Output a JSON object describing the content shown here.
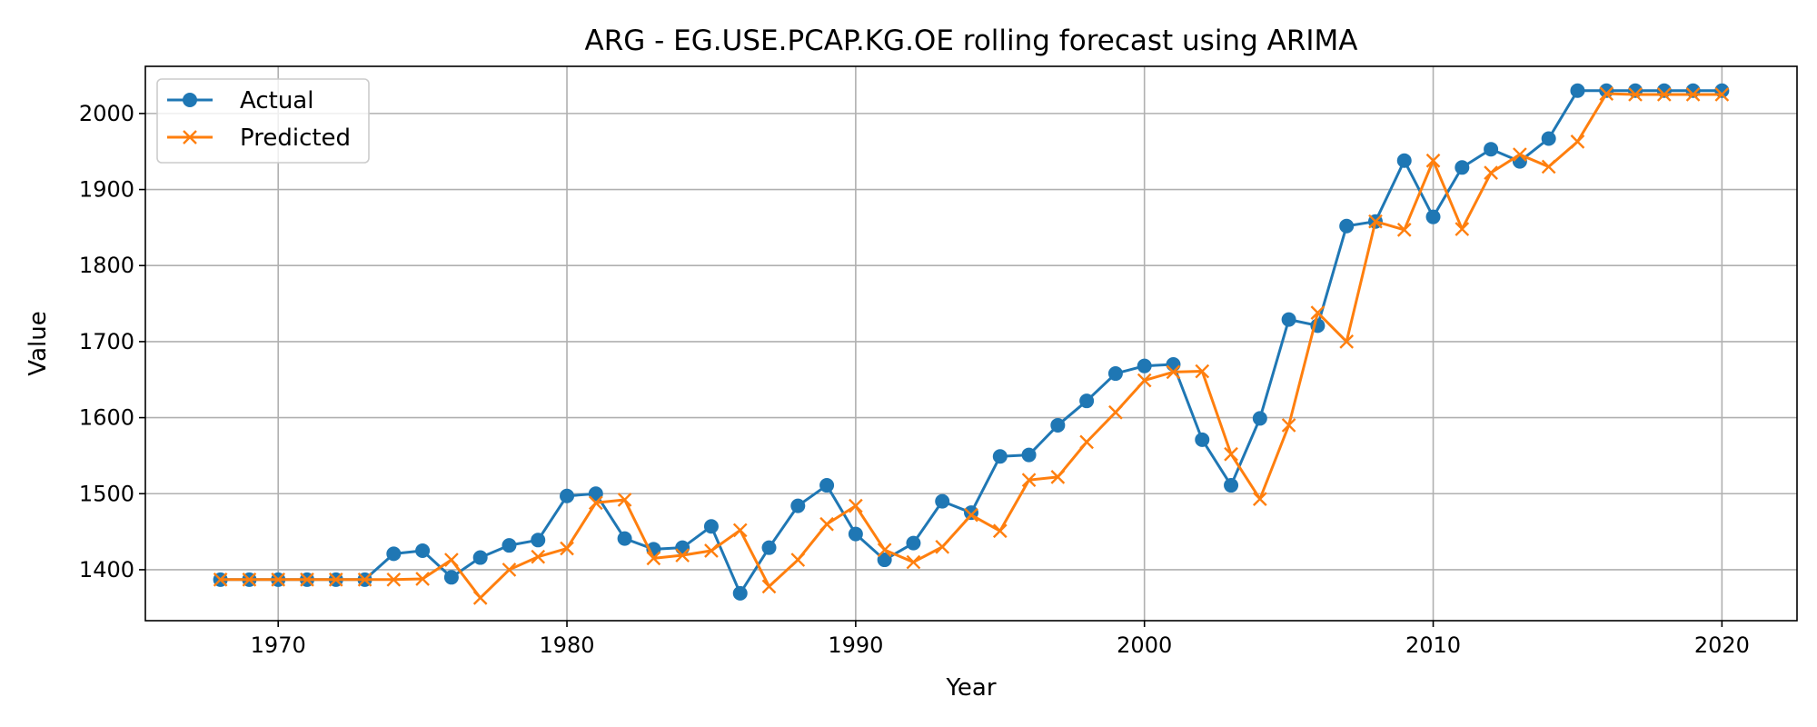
{
  "chart_data": {
    "type": "line",
    "title": "ARG - EG.USE.PCAP.KG.OE rolling forecast using ARIMA",
    "xlabel": "Year",
    "ylabel": "Value",
    "xlim": [
      1965.4,
      2022.6
    ],
    "ylim": [
      1333,
      2062
    ],
    "x_ticks": [
      1970,
      1980,
      1990,
      2000,
      2010,
      2020
    ],
    "y_ticks": [
      1400,
      1500,
      1600,
      1700,
      1800,
      1900,
      2000
    ],
    "grid": true,
    "legend_position": "top-left",
    "x": [
      1968,
      1969,
      1970,
      1971,
      1972,
      1973,
      1974,
      1975,
      1976,
      1977,
      1978,
      1979,
      1980,
      1981,
      1982,
      1983,
      1984,
      1985,
      1986,
      1987,
      1988,
      1989,
      1990,
      1991,
      1992,
      1993,
      1994,
      1995,
      1996,
      1997,
      1998,
      1999,
      2000,
      2001,
      2002,
      2003,
      2004,
      2005,
      2006,
      2007,
      2008,
      2009,
      2010,
      2011,
      2012,
      2013,
      2014,
      2015,
      2016,
      2017,
      2018,
      2019,
      2020
    ],
    "series": [
      {
        "name": "Actual",
        "color": "#1f77b4",
        "marker": "circle",
        "values": [
          1387,
          1387,
          1387,
          1387,
          1387,
          1387,
          1421,
          1425,
          1390,
          1416,
          1432,
          1439,
          1497,
          1500,
          1441,
          1427,
          1429,
          1457,
          1369,
          1429,
          1484,
          1511,
          1447,
          1413,
          1435,
          1490,
          1475,
          1549,
          1551,
          1590,
          1622,
          1658,
          1668,
          1670,
          1571,
          1511,
          1599,
          1729,
          1721,
          1852,
          1858,
          1938,
          1864,
          1929,
          1953,
          1937,
          1967,
          2030,
          2030,
          2030,
          2030,
          2030,
          2030
        ]
      },
      {
        "name": "Predicted",
        "color": "#ff7f0e",
        "marker": "x",
        "values": [
          1387,
          1387,
          1387,
          1387,
          1387,
          1387,
          1387,
          1388,
          1413,
          1363,
          1400,
          1417,
          1428,
          1488,
          1492,
          1415,
          1419,
          1425,
          1452,
          1378,
          1413,
          1460,
          1484,
          1426,
          1410,
          1430,
          1472,
          1451,
          1518,
          1522,
          1568,
          1607,
          1649,
          1660,
          1661,
          1552,
          1493,
          1590,
          1738,
          1700,
          1858,
          1847,
          1938,
          1848,
          1922,
          1946,
          1930,
          1963,
          2026,
          2025,
          2025,
          2025,
          2025
        ]
      }
    ]
  }
}
